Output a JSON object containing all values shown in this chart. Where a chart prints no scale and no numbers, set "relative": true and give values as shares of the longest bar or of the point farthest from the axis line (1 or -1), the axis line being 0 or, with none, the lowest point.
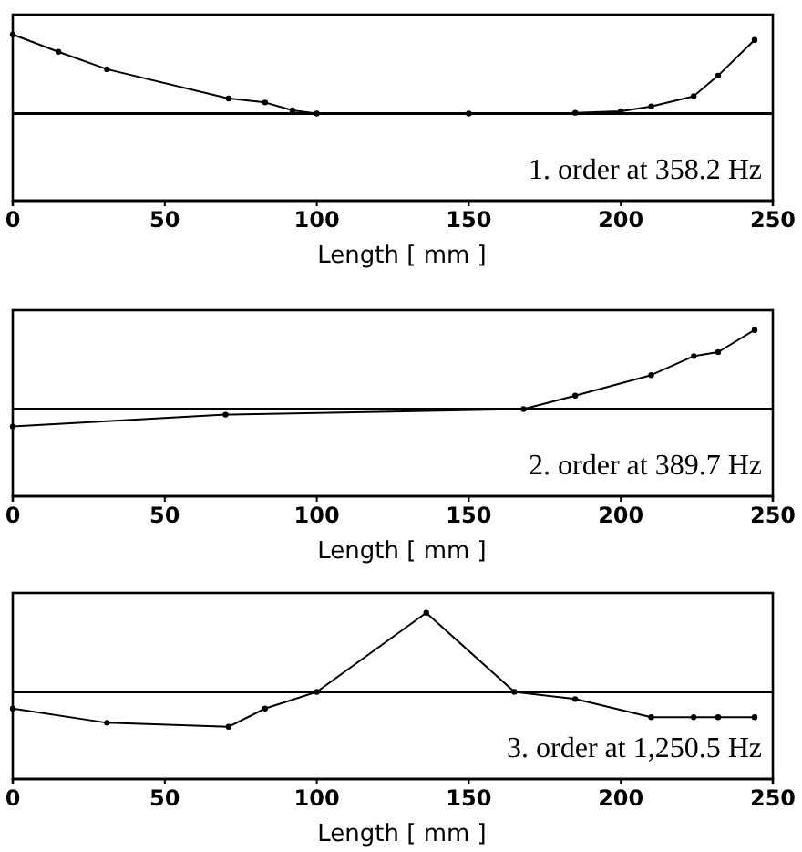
{
  "chart_data": [
    {
      "type": "line",
      "relative": true,
      "xlabel": "Length [ mm ]",
      "xlim": [
        0,
        250
      ],
      "xticks": [
        0,
        50,
        100,
        150,
        200,
        250
      ],
      "marker": "circle",
      "annotations": [
        "1. order at 358.2 Hz"
      ],
      "series": [
        {
          "color": "#000000",
          "x": [
            0,
            15,
            31,
            71,
            83,
            92,
            100,
            150,
            185,
            200,
            210,
            224,
            232,
            244
          ],
          "values": [
            1,
            0.78,
            0.56,
            0.19,
            0.14,
            0.04,
            0,
            0,
            0.01,
            0.03,
            0.09,
            0.22,
            0.48,
            0.93
          ]
        }
      ]
    },
    {
      "type": "line",
      "relative": true,
      "xlabel": "Length [ mm ]",
      "xlim": [
        0,
        250
      ],
      "xticks": [
        0,
        50,
        100,
        150,
        200,
        250
      ],
      "marker": "circle",
      "annotations": [
        "2. order at 389.7 Hz"
      ],
      "series": [
        {
          "color": "#000000",
          "x": [
            0,
            70,
            168,
            185,
            210,
            224,
            232,
            244
          ],
          "values": [
            -0.22,
            -0.07,
            0,
            0.17,
            0.43,
            0.67,
            0.72,
            1
          ]
        }
      ]
    },
    {
      "type": "line",
      "relative": true,
      "xlabel": "Length [ mm ]",
      "xlim": [
        0,
        250
      ],
      "xticks": [
        0,
        50,
        100,
        150,
        200,
        250
      ],
      "marker": "circle",
      "annotations": [
        "3. order at 1,250.5 Hz"
      ],
      "series": [
        {
          "color": "#000000",
          "x": [
            0,
            31,
            71,
            83,
            100,
            136,
            165,
            185,
            210,
            224,
            232,
            244
          ],
          "values": [
            -0.21,
            -0.39,
            -0.44,
            -0.21,
            0,
            1,
            0,
            -0.09,
            -0.32,
            -0.32,
            -0.32,
            -0.32
          ]
        }
      ]
    }
  ]
}
